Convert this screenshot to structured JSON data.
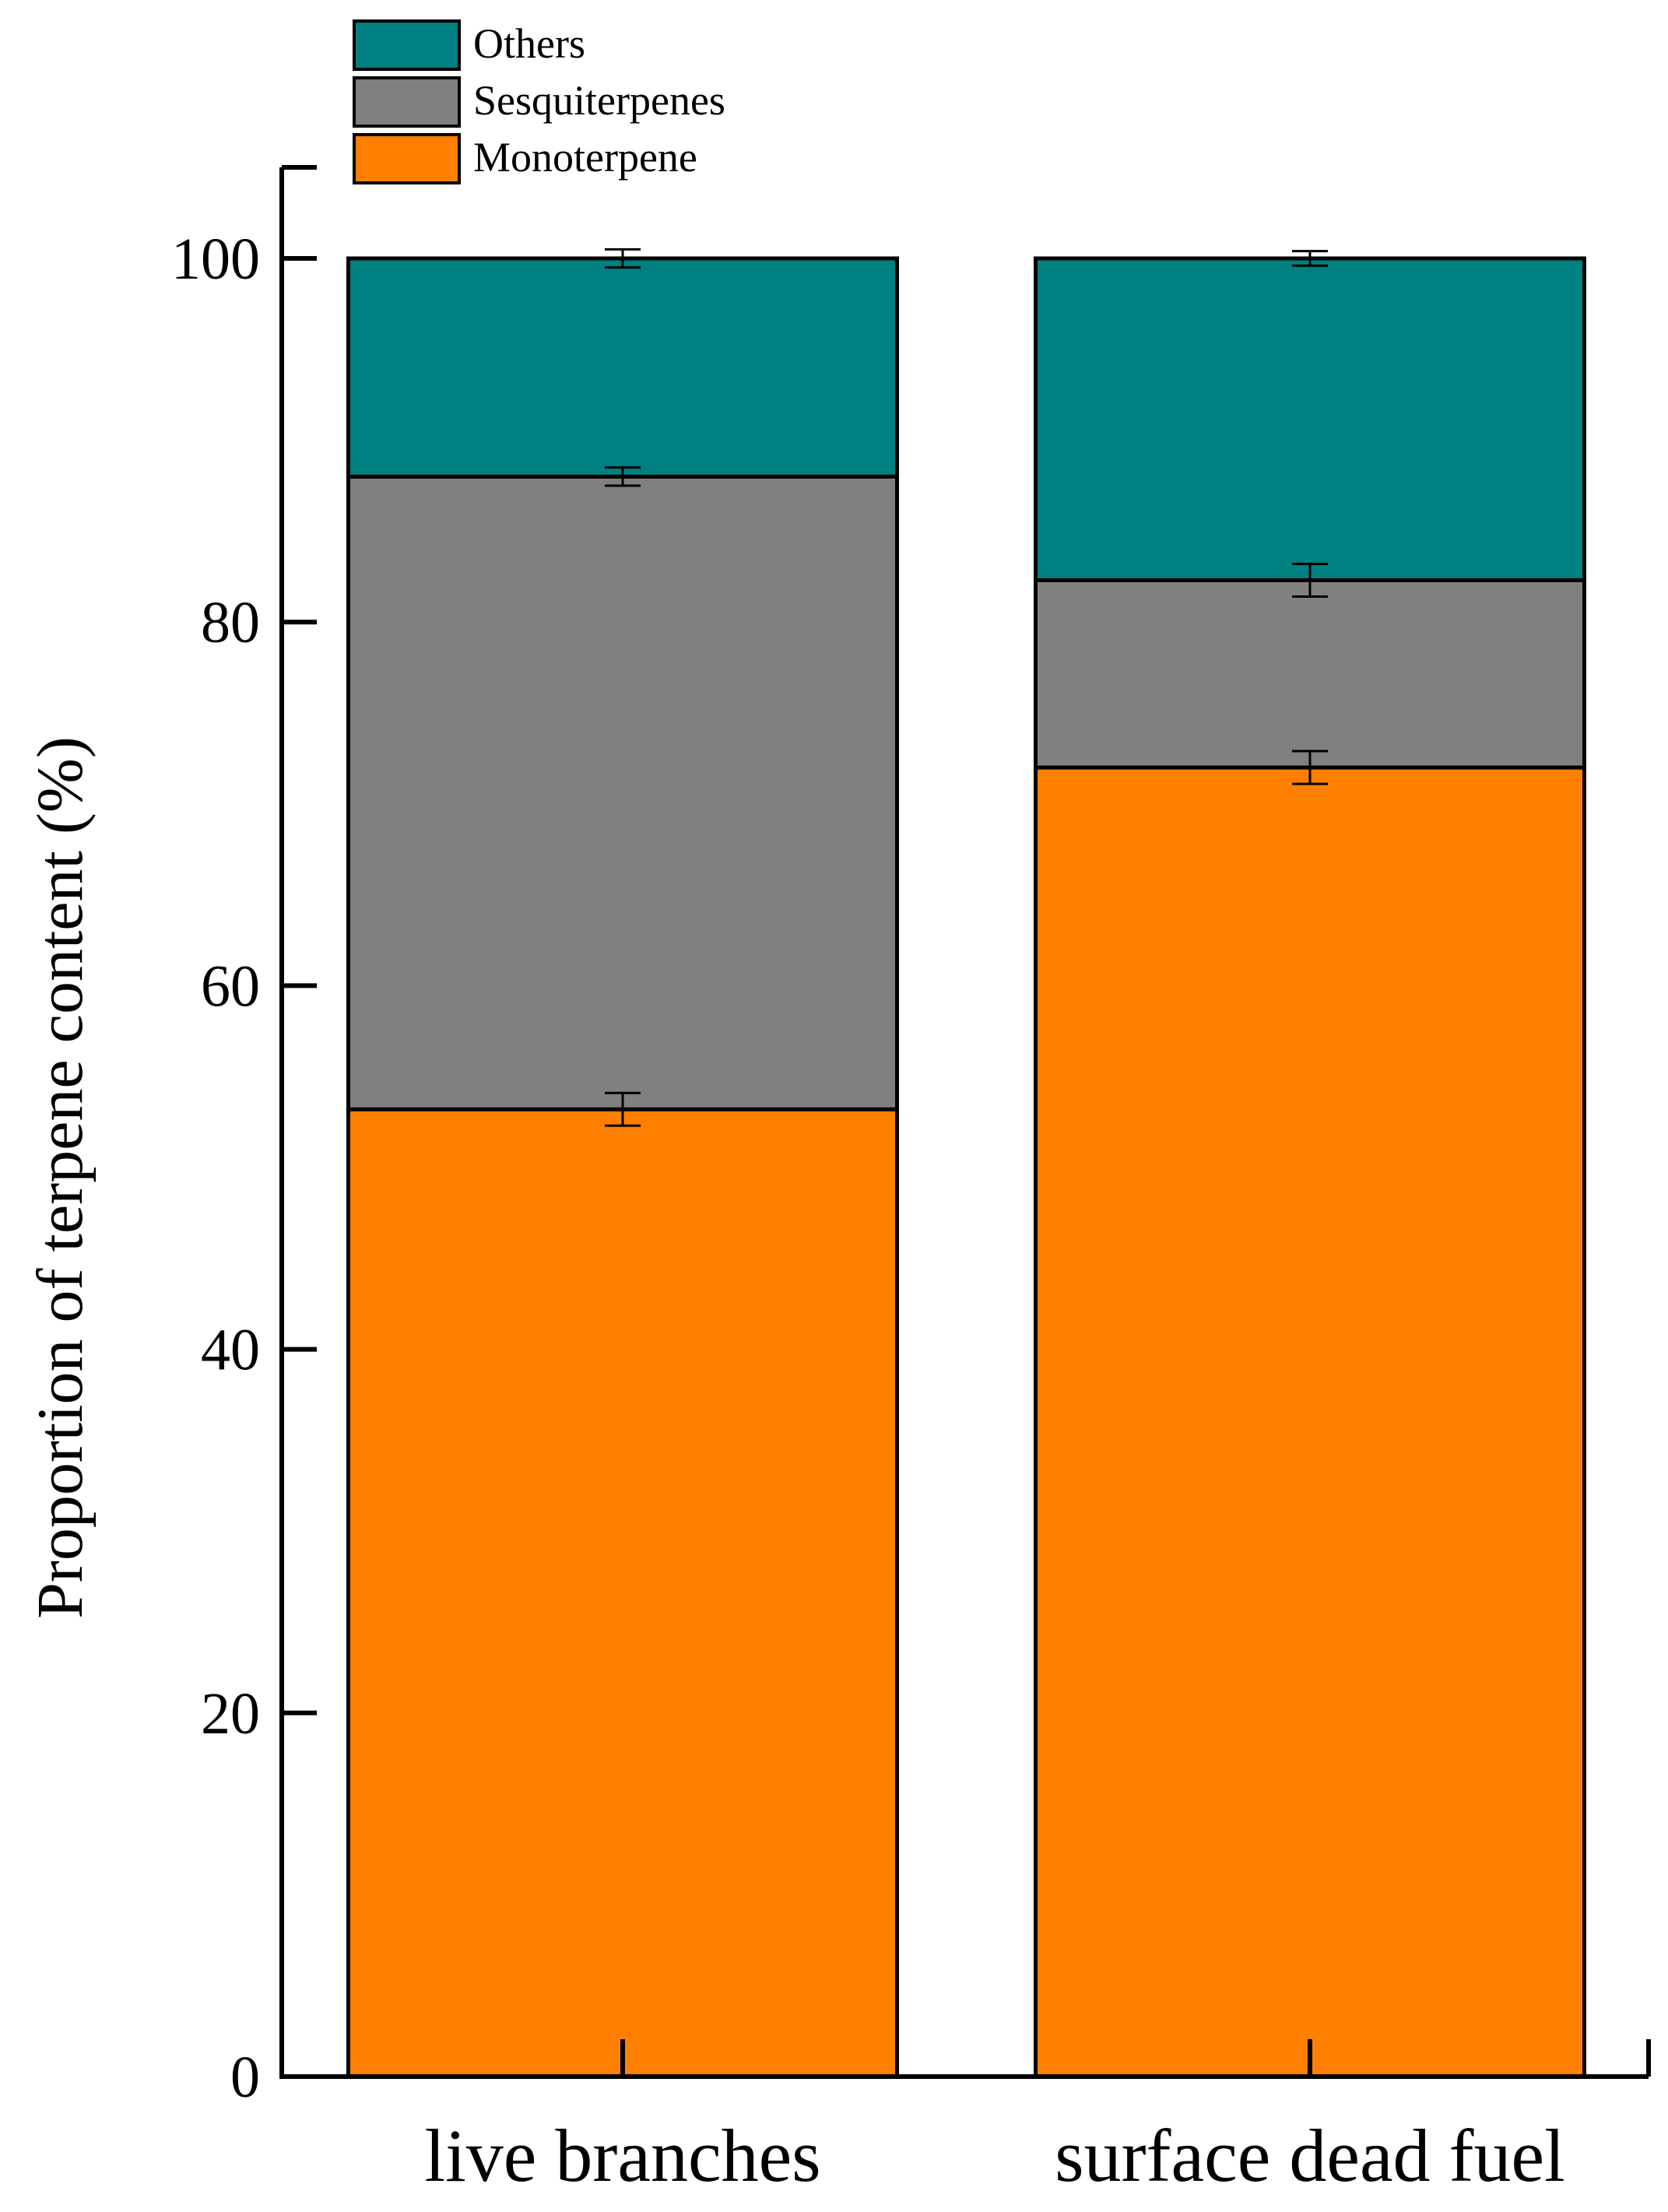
{
  "chart_data": {
    "type": "bar",
    "stacked": true,
    "ylabel": "Proportion of terpene content (%)",
    "xlabel": "",
    "categories": [
      "live branches",
      "surface dead fuel"
    ],
    "ylim": [
      0,
      105
    ],
    "yticks": [
      0,
      20,
      40,
      60,
      80,
      100
    ],
    "grid": false,
    "legend_position": "top-left",
    "series": [
      {
        "name": "Monoterpene",
        "color": "#FF8000",
        "values": [
          53.2,
          72.0
        ],
        "error": [
          0.9,
          0.9
        ]
      },
      {
        "name": "Sesquiterpenes",
        "color": "#808080",
        "values": [
          34.8,
          10.3
        ],
        "error": [
          0.5,
          0.9
        ]
      },
      {
        "name": "Others",
        "color": "#008080",
        "values": [
          12.0,
          17.7
        ],
        "error": [
          0.5,
          0.4
        ]
      }
    ],
    "legend_order": [
      "Others",
      "Sesquiterpenes",
      "Monoterpene"
    ]
  }
}
